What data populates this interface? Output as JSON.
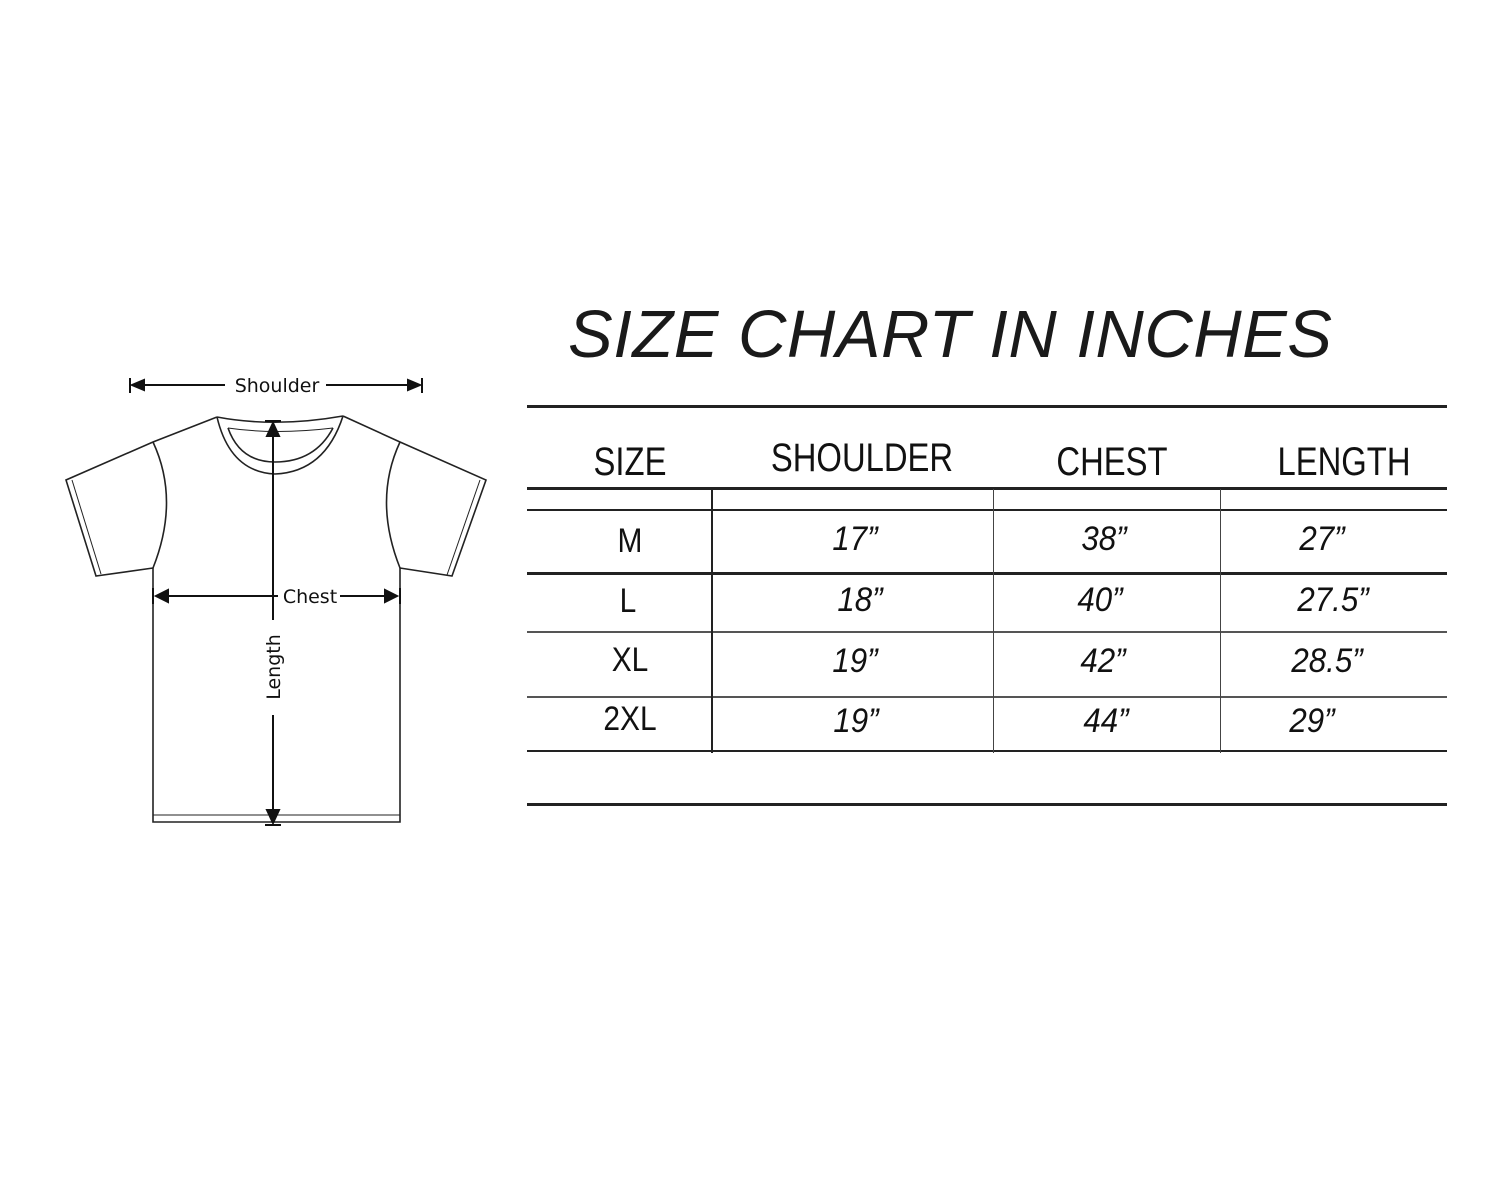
{
  "diagram": {
    "labels": {
      "shoulder": "Shoulder",
      "chest": "Chest",
      "length": "Length"
    }
  },
  "title": "SIZE CHART IN INCHES",
  "table": {
    "headers": [
      "SIZE",
      "SHOULDER",
      "CHEST",
      "LENGTH"
    ],
    "rows": [
      {
        "size": "M",
        "shoulder": "17”",
        "chest": "38”",
        "length": "27”"
      },
      {
        "size": "L",
        "shoulder": "18”",
        "chest": "40”",
        "length": "27.5”"
      },
      {
        "size": "XL",
        "shoulder": "19”",
        "chest": "42”",
        "length": "28.5”"
      },
      {
        "size": "2XL",
        "shoulder": "19”",
        "chest": "44”",
        "length": "29”"
      }
    ]
  }
}
